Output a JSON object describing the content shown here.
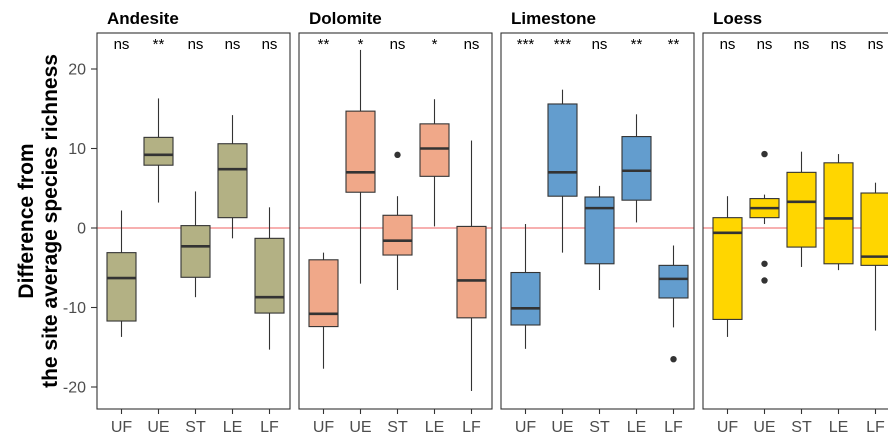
{
  "chart_data": {
    "type": "box",
    "ylabel_lines": [
      "Difference from",
      "the site average species richness"
    ],
    "ylim": [
      -23,
      25
    ],
    "yticks": [
      -20,
      -10,
      0,
      10,
      20
    ],
    "categories": [
      "UF",
      "UE",
      "ST",
      "LE",
      "LF"
    ],
    "reference_line": 0,
    "panels": [
      {
        "title": "Andesite",
        "fill": "#b3b184",
        "sig": [
          "ns",
          "**",
          "ns",
          "ns",
          "ns"
        ],
        "boxes": [
          {
            "min": -13.7,
            "q1": -11.7,
            "median": -6.3,
            "q3": -3.1,
            "max": 2.2,
            "outliers": []
          },
          {
            "min": 3.2,
            "q1": 7.9,
            "median": 9.2,
            "q3": 11.4,
            "max": 16.3,
            "outliers": []
          },
          {
            "min": -8.7,
            "q1": -6.2,
            "median": -2.3,
            "q3": 0.3,
            "max": 4.6,
            "outliers": []
          },
          {
            "min": -1.3,
            "q1": 1.3,
            "median": 7.4,
            "q3": 10.6,
            "max": 14.2,
            "outliers": []
          },
          {
            "min": -15.3,
            "q1": -10.7,
            "median": -8.7,
            "q3": -1.3,
            "max": 2.6,
            "outliers": []
          }
        ]
      },
      {
        "title": "Dolomite",
        "fill": "#f0a889",
        "sig": [
          "**",
          "*",
          "ns",
          "*",
          "ns"
        ],
        "boxes": [
          {
            "min": -17.7,
            "q1": -12.4,
            "median": -10.8,
            "q3": -4.0,
            "max": -3.1,
            "outliers": []
          },
          {
            "min": -7.0,
            "q1": 4.5,
            "median": 7.0,
            "q3": 14.7,
            "max": 22.4,
            "outliers": []
          },
          {
            "min": -7.8,
            "q1": -3.4,
            "median": -1.6,
            "q3": 1.6,
            "max": 4.0,
            "outliers": [
              9.2
            ]
          },
          {
            "min": 0.2,
            "q1": 6.5,
            "median": 10.0,
            "q3": 13.1,
            "max": 16.2,
            "outliers": []
          },
          {
            "min": -20.5,
            "q1": -11.3,
            "median": -6.6,
            "q3": 0.2,
            "max": 11.0,
            "outliers": []
          }
        ]
      },
      {
        "title": "Limestone",
        "fill": "#639dce",
        "sig": [
          "***",
          "***",
          "ns",
          "**",
          "**"
        ],
        "boxes": [
          {
            "min": -15.2,
            "q1": -12.2,
            "median": -10.1,
            "q3": -5.6,
            "max": 0.5,
            "outliers": []
          },
          {
            "min": -3.1,
            "q1": 4.0,
            "median": 7.0,
            "q3": 15.6,
            "max": 17.4,
            "outliers": []
          },
          {
            "min": -7.8,
            "q1": -4.5,
            "median": 2.5,
            "q3": 3.9,
            "max": 5.3,
            "outliers": []
          },
          {
            "min": 0.7,
            "q1": 3.5,
            "median": 7.2,
            "q3": 11.5,
            "max": 14.3,
            "outliers": []
          },
          {
            "min": -12.5,
            "q1": -8.8,
            "median": -6.4,
            "q3": -4.7,
            "max": -2.2,
            "outliers": [
              -16.5
            ]
          }
        ]
      },
      {
        "title": "Loess",
        "fill": "#ffd600",
        "sig": [
          "ns",
          "ns",
          "ns",
          "ns",
          "ns"
        ],
        "boxes": [
          {
            "min": -13.7,
            "q1": -11.5,
            "median": -0.6,
            "q3": 1.3,
            "max": 4.0,
            "outliers": []
          },
          {
            "min": 0.5,
            "q1": 1.3,
            "median": 2.5,
            "q3": 3.7,
            "max": 4.2,
            "outliers": [
              9.3,
              -4.5,
              -6.6
            ]
          },
          {
            "min": -4.9,
            "q1": -2.4,
            "median": 3.3,
            "q3": 7.0,
            "max": 9.6,
            "outliers": []
          },
          {
            "min": -5.3,
            "q1": -4.5,
            "median": 1.2,
            "q3": 8.2,
            "max": 9.3,
            "outliers": []
          },
          {
            "min": -12.9,
            "q1": -4.7,
            "median": -3.6,
            "q3": 4.4,
            "max": 5.7,
            "outliers": []
          }
        ]
      }
    ],
    "colors": {
      "panel_border": "#333333",
      "box_stroke": "#333333",
      "reference_line": "#f28080",
      "outlier": "#333333"
    }
  }
}
